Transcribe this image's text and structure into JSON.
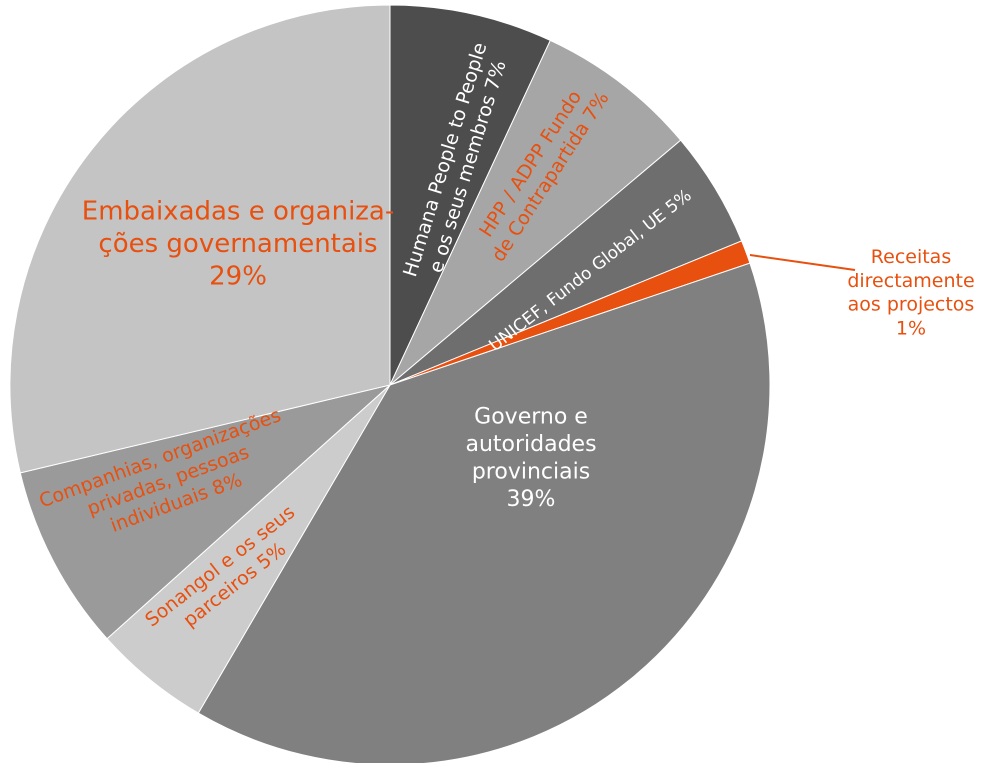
{
  "chart_data": {
    "type": "pie",
    "title": "",
    "start_angle_deg": 0,
    "direction": "clockwise",
    "slices": [
      {
        "value": 7,
        "lines": [
          "Humana People to People",
          "e os seus membros 7%"
        ],
        "color": "#4d4d4d",
        "label_color": "#ffffff"
      },
      {
        "value": 7,
        "lines": [
          "HPP / ADPP Fundo",
          "de Contrapartida 7%"
        ],
        "color": "#a6a6a6",
        "label_color": "#e8500f"
      },
      {
        "value": 5,
        "lines": [
          "UNICEF, Fundo Global, UE 5%"
        ],
        "color": "#6e6e6e",
        "label_color": "#ffffff"
      },
      {
        "value": 1,
        "lines": [
          "Receitas",
          "directamente",
          "aos projectos",
          "1%"
        ],
        "color": "#e8500f",
        "label_color": "#e8500f"
      },
      {
        "value": 39,
        "lines": [
          "Governo e",
          "autoridades",
          "provinciais",
          "39%"
        ],
        "color": "#808080",
        "label_color": "#ffffff"
      },
      {
        "value": 5,
        "lines": [
          "Sonangol e os seus",
          "parceiros 5%"
        ],
        "color": "#cccccc",
        "label_color": "#e8500f"
      },
      {
        "value": 8,
        "lines": [
          "Companhias, organizações",
          "privadas, pessoas",
          "individuais 8%"
        ],
        "color": "#9a9a9a",
        "label_color": "#e8500f"
      },
      {
        "value": 29,
        "lines": [
          "Embaixadas e organiza-",
          "ções governamentais",
          "29%"
        ],
        "color": "#c4c4c4",
        "label_color": "#e8500f"
      }
    ]
  }
}
